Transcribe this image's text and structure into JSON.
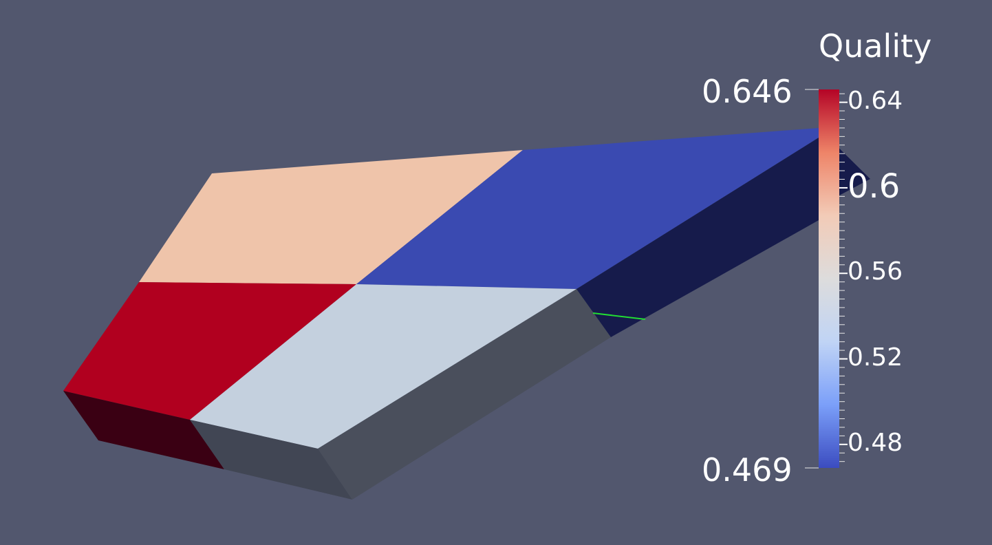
{
  "scalar_bar": {
    "title": "Quality",
    "range": [
      0.469,
      0.646
    ],
    "max_label": "0.646",
    "min_label": "0.469",
    "ticks": [
      {
        "value": 0.64,
        "label": "0.64",
        "major": false
      },
      {
        "value": 0.6,
        "label": "0.6",
        "major": true
      },
      {
        "value": 0.56,
        "label": "0.56",
        "major": false
      },
      {
        "value": 0.52,
        "label": "0.52",
        "major": false
      },
      {
        "value": 0.48,
        "label": "0.48",
        "major": false
      }
    ],
    "minor_step": 0.004,
    "colormap": [
      "#3b4cc0",
      "#7b9ff9",
      "#c0d4f5",
      "#dddcdc",
      "#f2cbb7",
      "#ee8468",
      "#b40426"
    ]
  },
  "colors": {
    "background": "#52576e",
    "cell_top_left_back": "#efc4aa",
    "cell_top_right_back": "#3a4ab1",
    "cell_front_left": "#b1001f",
    "cell_front_right": "#c4d0de",
    "side_dark_red": "#3a0013",
    "side_gray_light": "#414654",
    "side_gray": "#4a4f5c",
    "side_navy": "#161b4b",
    "edge_highlight": "#22dd33"
  }
}
